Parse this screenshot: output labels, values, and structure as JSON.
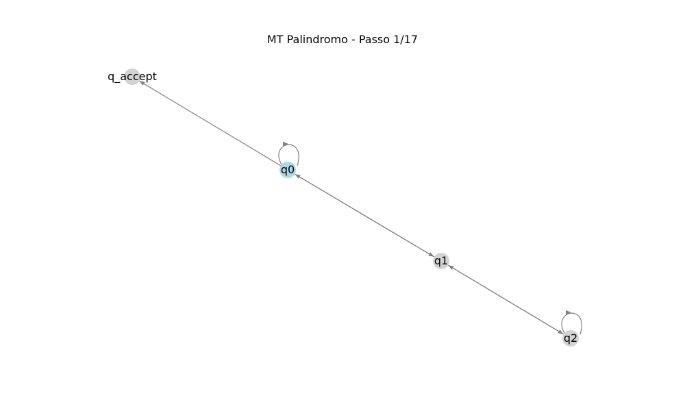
{
  "title": "MT Palindromo - Passo 1/17",
  "graph": {
    "current_state": "q0",
    "colors": {
      "active_node": "#add8e6",
      "inactive_node": "#d3d3d3",
      "edge": "#808080",
      "label": "#000000"
    },
    "nodes": [
      {
        "id": "q_accept",
        "label": "q_accept"
      },
      {
        "id": "q0",
        "label": "q0"
      },
      {
        "id": "q1",
        "label": "q1"
      },
      {
        "id": "q2",
        "label": "q2"
      }
    ],
    "edges": [
      {
        "from": "q0",
        "to": "q_accept"
      },
      {
        "from": "q0",
        "to": "q0"
      },
      {
        "from": "q0",
        "to": "q1"
      },
      {
        "from": "q1",
        "to": "q0"
      },
      {
        "from": "q1",
        "to": "q2"
      },
      {
        "from": "q2",
        "to": "q1"
      },
      {
        "from": "q2",
        "to": "q2"
      }
    ]
  }
}
